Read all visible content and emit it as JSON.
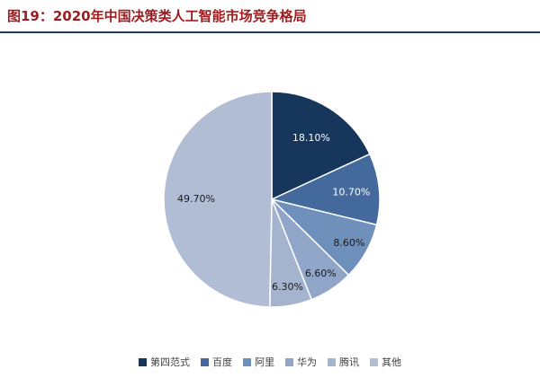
{
  "header": {
    "title": "图19：2020年中国决策类人工智能市场竞争格局",
    "title_color": "#9E1B1E",
    "rule_color": "#1F3864"
  },
  "chart_data": {
    "type": "pie",
    "title": "2020年中国决策类人工智能市场竞争格局",
    "start_angle_deg": 0,
    "direction": "clockwise",
    "legend_position": "bottom",
    "background": "#FFFFFF",
    "slices": [
      {
        "label": "第四范式",
        "value": 18.1,
        "display": "18.10%",
        "color": "#16365C"
      },
      {
        "label": "百度",
        "value": 10.7,
        "display": "10.70%",
        "color": "#44699D"
      },
      {
        "label": "阿里",
        "value": 8.6,
        "display": "8.60%",
        "color": "#7090BC"
      },
      {
        "label": "华为",
        "value": 6.6,
        "display": "6.60%",
        "color": "#8FA6C8"
      },
      {
        "label": "腾讯",
        "value": 6.3,
        "display": "6.30%",
        "color": "#A4B4CF"
      },
      {
        "label": "其他",
        "value": 49.7,
        "display": "49.70%",
        "color": "#B1BDD4"
      }
    ]
  }
}
